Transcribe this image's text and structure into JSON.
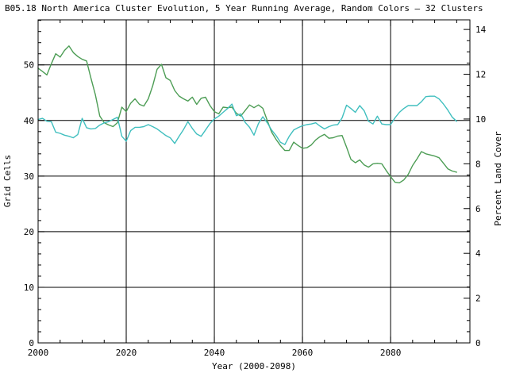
{
  "colors": {
    "background": "#ffffff",
    "axis": "#000000",
    "grid": "#000000",
    "series_green": "#4d9d55",
    "series_cyan": "#40bfbf"
  },
  "chart_data": {
    "type": "line",
    "title": "B05.18 North America Cluster Evolution, 5 Year Running Average, Random Colors — 32 Clusters",
    "grid": true,
    "legend_position": "none",
    "x_axis": {
      "label": "Year (2000-2098)",
      "min": 2000,
      "max": 2098,
      "major_tick_interval": 20,
      "minor_tick_interval": 5,
      "major_tick_labels": [
        "2000",
        "2020",
        "2040",
        "2060",
        "2080"
      ]
    },
    "y_axis_left": {
      "label": "Grid Cells",
      "min": 0,
      "max": 58.1,
      "major_tick_interval": 10,
      "minor_tick_interval": 2,
      "major_tick_labels": [
        "0",
        "10",
        "20",
        "30",
        "40",
        "50"
      ]
    },
    "y_axis_right": {
      "label": "Percent Land Cover",
      "min": 0,
      "max": 14.43,
      "major_tick_interval": 2,
      "minor_tick_interval": 0.5,
      "major_tick_labels": [
        "0",
        "2",
        "4",
        "6",
        "8",
        "10",
        "12",
        "14"
      ]
    },
    "series": [
      {
        "name": "green-cluster-line",
        "axis": "left",
        "color": "#4d9d55",
        "points": [
          [
            2000,
            49.4
          ],
          [
            2001,
            48.8
          ],
          [
            2002,
            48.2
          ],
          [
            2003,
            50.2
          ],
          [
            2004,
            52.0
          ],
          [
            2005,
            51.4
          ],
          [
            2006,
            52.6
          ],
          [
            2007,
            53.4
          ],
          [
            2008,
            52.2
          ],
          [
            2009,
            51.5
          ],
          [
            2010,
            51.0
          ],
          [
            2011,
            50.7
          ],
          [
            2012,
            47.6
          ],
          [
            2013,
            44.6
          ],
          [
            2014,
            40.8
          ],
          [
            2015,
            39.6
          ],
          [
            2016,
            39.2
          ],
          [
            2017,
            38.9
          ],
          [
            2018,
            39.6
          ],
          [
            2019,
            42.4
          ],
          [
            2020,
            41.6
          ],
          [
            2021,
            43.1
          ],
          [
            2022,
            43.9
          ],
          [
            2023,
            42.9
          ],
          [
            2024,
            42.6
          ],
          [
            2025,
            43.9
          ],
          [
            2026,
            46.2
          ],
          [
            2027,
            49.2
          ],
          [
            2028,
            50.1
          ],
          [
            2029,
            47.7
          ],
          [
            2030,
            47.2
          ],
          [
            2031,
            45.4
          ],
          [
            2032,
            44.4
          ],
          [
            2033,
            43.9
          ],
          [
            2034,
            43.5
          ],
          [
            2035,
            44.2
          ],
          [
            2036,
            42.9
          ],
          [
            2037,
            44.0
          ],
          [
            2038,
            44.2
          ],
          [
            2039,
            42.7
          ],
          [
            2040,
            41.6
          ],
          [
            2041,
            41.2
          ],
          [
            2042,
            42.4
          ],
          [
            2043,
            42.3
          ],
          [
            2044,
            42.4
          ],
          [
            2045,
            41.3
          ],
          [
            2046,
            40.8
          ],
          [
            2047,
            41.8
          ],
          [
            2048,
            42.8
          ],
          [
            2049,
            42.3
          ],
          [
            2050,
            42.8
          ],
          [
            2051,
            42.2
          ],
          [
            2052,
            40.0
          ],
          [
            2053,
            37.9
          ],
          [
            2054,
            36.6
          ],
          [
            2055,
            35.5
          ],
          [
            2056,
            34.6
          ],
          [
            2057,
            34.6
          ],
          [
            2058,
            36.1
          ],
          [
            2059,
            35.5
          ],
          [
            2060,
            35.0
          ],
          [
            2061,
            35.1
          ],
          [
            2062,
            35.6
          ],
          [
            2063,
            36.5
          ],
          [
            2064,
            37.1
          ],
          [
            2065,
            37.5
          ],
          [
            2066,
            36.8
          ],
          [
            2067,
            36.9
          ],
          [
            2068,
            37.2
          ],
          [
            2069,
            37.3
          ],
          [
            2070,
            35.2
          ],
          [
            2071,
            33.0
          ],
          [
            2072,
            32.4
          ],
          [
            2073,
            32.9
          ],
          [
            2074,
            32.0
          ],
          [
            2075,
            31.6
          ],
          [
            2076,
            32.2
          ],
          [
            2077,
            32.3
          ],
          [
            2078,
            32.2
          ],
          [
            2079,
            31.0
          ],
          [
            2080,
            29.9
          ],
          [
            2081,
            28.9
          ],
          [
            2082,
            28.8
          ],
          [
            2083,
            29.3
          ],
          [
            2084,
            30.3
          ],
          [
            2085,
            31.9
          ],
          [
            2086,
            33.1
          ],
          [
            2087,
            34.4
          ],
          [
            2088,
            34.0
          ],
          [
            2089,
            33.8
          ],
          [
            2090,
            33.6
          ],
          [
            2091,
            33.3
          ],
          [
            2092,
            32.3
          ],
          [
            2093,
            31.3
          ],
          [
            2094,
            30.9
          ],
          [
            2095,
            30.7
          ]
        ]
      },
      {
        "name": "cyan-cluster-line",
        "axis": "right",
        "color": "#40bfbf",
        "points": [
          [
            2000,
            9.98
          ],
          [
            2001,
            10.03
          ],
          [
            2002,
            9.9
          ],
          [
            2003,
            9.88
          ],
          [
            2004,
            9.41
          ],
          [
            2005,
            9.36
          ],
          [
            2006,
            9.28
          ],
          [
            2007,
            9.23
          ],
          [
            2008,
            9.16
          ],
          [
            2009,
            9.31
          ],
          [
            2010,
            10.03
          ],
          [
            2011,
            9.61
          ],
          [
            2012,
            9.56
          ],
          [
            2013,
            9.58
          ],
          [
            2014,
            9.73
          ],
          [
            2015,
            9.83
          ],
          [
            2016,
            9.88
          ],
          [
            2017,
            9.98
          ],
          [
            2018,
            10.08
          ],
          [
            2019,
            9.23
          ],
          [
            2020,
            9.01
          ],
          [
            2021,
            9.48
          ],
          [
            2022,
            9.63
          ],
          [
            2023,
            9.63
          ],
          [
            2024,
            9.66
          ],
          [
            2025,
            9.75
          ],
          [
            2026,
            9.66
          ],
          [
            2027,
            9.56
          ],
          [
            2028,
            9.41
          ],
          [
            2029,
            9.26
          ],
          [
            2030,
            9.16
          ],
          [
            2031,
            8.91
          ],
          [
            2032,
            9.23
          ],
          [
            2033,
            9.53
          ],
          [
            2034,
            9.88
          ],
          [
            2035,
            9.58
          ],
          [
            2036,
            9.33
          ],
          [
            2037,
            9.23
          ],
          [
            2038,
            9.51
          ],
          [
            2039,
            9.8
          ],
          [
            2040,
            10.0
          ],
          [
            2041,
            10.13
          ],
          [
            2042,
            10.3
          ],
          [
            2043,
            10.47
          ],
          [
            2044,
            10.67
          ],
          [
            2045,
            10.15
          ],
          [
            2046,
            10.23
          ],
          [
            2047,
            9.85
          ],
          [
            2048,
            9.63
          ],
          [
            2049,
            9.28
          ],
          [
            2050,
            9.8
          ],
          [
            2051,
            10.1
          ],
          [
            2052,
            9.83
          ],
          [
            2053,
            9.51
          ],
          [
            2054,
            9.26
          ],
          [
            2055,
            8.96
          ],
          [
            2056,
            8.86
          ],
          [
            2057,
            9.23
          ],
          [
            2058,
            9.51
          ],
          [
            2059,
            9.61
          ],
          [
            2060,
            9.7
          ],
          [
            2061,
            9.75
          ],
          [
            2062,
            9.78
          ],
          [
            2063,
            9.83
          ],
          [
            2064,
            9.68
          ],
          [
            2065,
            9.56
          ],
          [
            2066,
            9.66
          ],
          [
            2067,
            9.73
          ],
          [
            2068,
            9.75
          ],
          [
            2069,
            10.05
          ],
          [
            2070,
            10.62
          ],
          [
            2071,
            10.47
          ],
          [
            2072,
            10.3
          ],
          [
            2073,
            10.6
          ],
          [
            2074,
            10.37
          ],
          [
            2075,
            9.9
          ],
          [
            2076,
            9.78
          ],
          [
            2077,
            10.13
          ],
          [
            2078,
            9.78
          ],
          [
            2079,
            9.75
          ],
          [
            2080,
            9.75
          ],
          [
            2081,
            10.05
          ],
          [
            2082,
            10.3
          ],
          [
            2083,
            10.47
          ],
          [
            2084,
            10.6
          ],
          [
            2085,
            10.6
          ],
          [
            2086,
            10.6
          ],
          [
            2087,
            10.77
          ],
          [
            2088,
            11.0
          ],
          [
            2089,
            11.02
          ],
          [
            2090,
            11.02
          ],
          [
            2091,
            10.9
          ],
          [
            2092,
            10.67
          ],
          [
            2093,
            10.4
          ],
          [
            2094,
            10.08
          ],
          [
            2095,
            9.9
          ]
        ]
      }
    ]
  }
}
